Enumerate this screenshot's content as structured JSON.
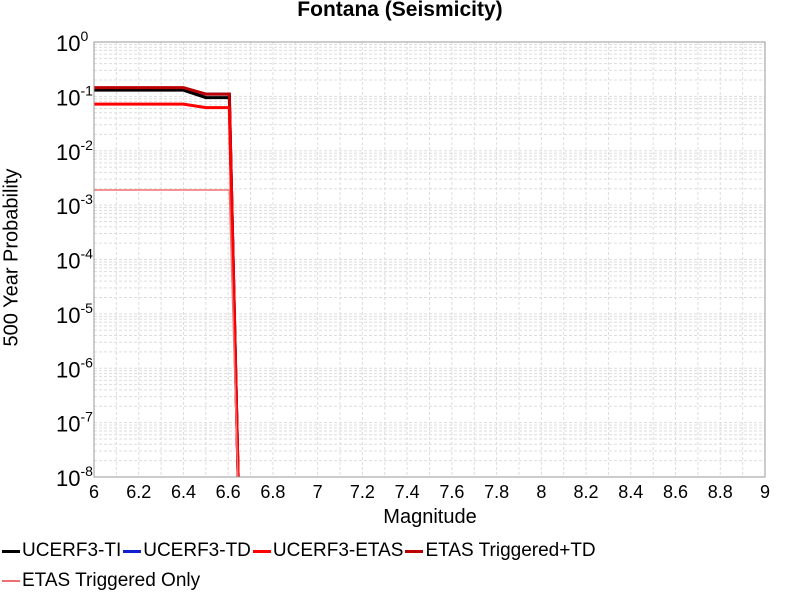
{
  "chart_data": {
    "type": "line",
    "title": "Fontana (Seismicity)",
    "xlabel": "Magnitude",
    "ylabel": "500 Year Probability",
    "xlim": [
      6,
      9
    ],
    "ylim": [
      1e-08,
      1
    ],
    "y_scale": "log",
    "grid": true,
    "x_ticks": [
      "6",
      "6.2",
      "6.4",
      "6.6",
      "6.8",
      "7",
      "7.2",
      "7.4",
      "7.6",
      "7.8",
      "8",
      "8.2",
      "8.4",
      "8.6",
      "8.8",
      "9"
    ],
    "y_ticks": [
      {
        "base": "10",
        "exp": "0",
        "value": 1
      },
      {
        "base": "10",
        "exp": "-1",
        "value": 0.1
      },
      {
        "base": "10",
        "exp": "-2",
        "value": 0.01
      },
      {
        "base": "10",
        "exp": "-3",
        "value": 0.001
      },
      {
        "base": "10",
        "exp": "-4",
        "value": 0.0001
      },
      {
        "base": "10",
        "exp": "-5",
        "value": 1e-05
      },
      {
        "base": "10",
        "exp": "-6",
        "value": 1e-06
      },
      {
        "base": "10",
        "exp": "-7",
        "value": 1e-07
      },
      {
        "base": "10",
        "exp": "-8",
        "value": 1e-08
      }
    ],
    "legend_position": "bottom",
    "series": [
      {
        "name": "UCERF3-TI",
        "color": "#000000",
        "width": 3,
        "x": [
          6.0,
          6.4,
          6.5,
          6.6,
          6.605,
          6.65
        ],
        "y": [
          0.13,
          0.13,
          0.095,
          0.095,
          0.095,
          1e-09
        ]
      },
      {
        "name": "UCERF3-TD",
        "color": "#1020cc",
        "width": 3,
        "x": [
          6.0,
          6.4,
          6.5,
          6.6,
          6.605,
          6.65
        ],
        "y": [
          0.14,
          0.14,
          0.11,
          0.11,
          0.11,
          1e-09
        ]
      },
      {
        "name": "UCERF3-ETAS",
        "color": "#ff0000",
        "width": 3,
        "x": [
          6.0,
          6.4,
          6.5,
          6.6,
          6.605,
          6.65
        ],
        "y": [
          0.072,
          0.072,
          0.062,
          0.062,
          0.062,
          1e-09
        ]
      },
      {
        "name": "ETAS Triggered+TD",
        "color": "#bb0000",
        "width": 3,
        "x": [
          6.0,
          6.4,
          6.5,
          6.6,
          6.605,
          6.65
        ],
        "y": [
          0.145,
          0.145,
          0.11,
          0.11,
          0.11,
          1e-09
        ]
      },
      {
        "name": "ETAS Triggered Only",
        "color": "#f07070",
        "width": 1.5,
        "x": [
          6.0,
          6.6,
          6.605,
          6.65
        ],
        "y": [
          0.0019,
          0.0019,
          0.0019,
          1e-09
        ]
      }
    ],
    "draw_order": [
      1,
      0,
      3,
      2,
      4
    ]
  }
}
